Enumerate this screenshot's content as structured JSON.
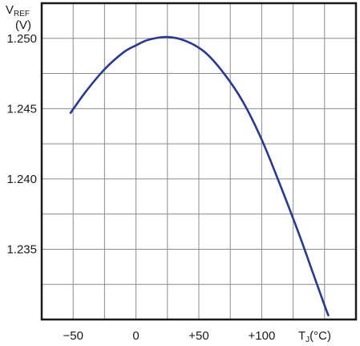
{
  "chart_data": {
    "type": "line",
    "ylabel_main": "V",
    "ylabel_sub": "REF",
    "ylabel_unit": "(V)",
    "xlabel_main": "T",
    "xlabel_sub": "J",
    "xlabel_unit": "(°C)",
    "xlim": [
      -75,
      175
    ],
    "ylim": [
      1.23,
      1.2525
    ],
    "x_ticks": [
      {
        "value": -50,
        "label": "−50"
      },
      {
        "value": 0,
        "label": "0"
      },
      {
        "value": 50,
        "label": "+50"
      },
      {
        "value": 100,
        "label": "+100"
      }
    ],
    "y_ticks": [
      {
        "value": 1.25,
        "label": "1.250"
      },
      {
        "value": 1.245,
        "label": "1.245"
      },
      {
        "value": 1.24,
        "label": "1.240"
      },
      {
        "value": 1.235,
        "label": "1.235"
      }
    ],
    "x_grid_step": 25,
    "y_grid_step": 0.0025,
    "grid": true,
    "series": [
      {
        "color": "#2b3990",
        "x": [
          -52,
          -40,
          -25,
          -10,
          0,
          10,
          25,
          40,
          55,
          70,
          85,
          100,
          115,
          130,
          140,
          150,
          153
        ],
        "y": [
          1.2447,
          1.2462,
          1.2478,
          1.249,
          1.2495,
          1.2499,
          1.2501,
          1.2498,
          1.249,
          1.2475,
          1.2455,
          1.2428,
          1.2395,
          1.236,
          1.2335,
          1.231,
          1.2303
        ]
      }
    ]
  }
}
